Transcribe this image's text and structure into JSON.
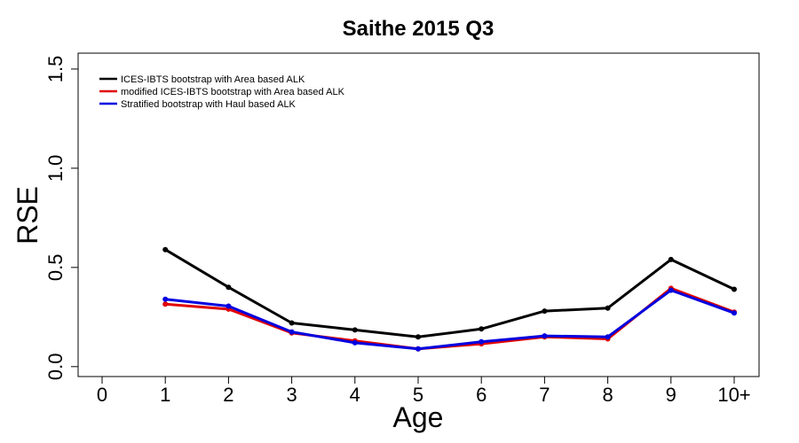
{
  "chart_data": {
    "type": "line",
    "title": "Saithe 2015 Q3",
    "xlabel": "Age",
    "ylabel": "RSE",
    "categories": [
      "0",
      "1",
      "2",
      "3",
      "4",
      "5",
      "6",
      "7",
      "8",
      "9",
      "10+"
    ],
    "ylim": [
      -0.05,
      1.58
    ],
    "yticks": [
      "0.0",
      "0.5",
      "1.0",
      "1.5"
    ],
    "ytick_values": [
      0.0,
      0.5,
      1.0,
      1.5
    ],
    "grid": false,
    "legend_position": "top-left",
    "series": [
      {
        "name": "ICES-IBTS bootstrap with Area based ALK",
        "color": "#000000",
        "values": [
          null,
          0.59,
          0.4,
          0.22,
          0.185,
          0.15,
          0.19,
          0.28,
          0.295,
          0.54,
          0.39
        ]
      },
      {
        "name": "modified ICES-IBTS bootstrap with Area based ALK",
        "color": "#e00000",
        "values": [
          null,
          0.315,
          0.29,
          0.17,
          0.13,
          0.09,
          0.115,
          0.15,
          0.14,
          0.395,
          0.275
        ]
      },
      {
        "name": "Stratified bootstrap with Haul based ALK",
        "color": "#0000e0",
        "values": [
          null,
          0.34,
          0.305,
          0.175,
          0.12,
          0.09,
          0.125,
          0.155,
          0.15,
          0.385,
          0.27
        ]
      }
    ]
  }
}
